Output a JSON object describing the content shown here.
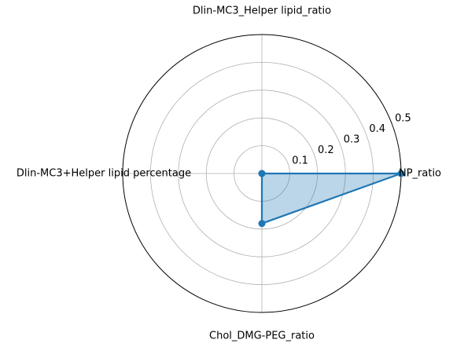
{
  "chart_data": {
    "type": "radar",
    "title": "",
    "axes": [
      "NP_ratio",
      "Dlin-MC3_Helper lipid_ratio",
      "Dlin-MC3+Helper lipid percentage",
      "Chol_DMG-PEG_ratio"
    ],
    "radial_ticks": [
      "0.1",
      "0.2",
      "0.3",
      "0.4",
      "0.5"
    ],
    "radial_range": [
      0,
      0.5
    ],
    "grid": true,
    "legend": "none",
    "series": [
      {
        "values": [
          0.5,
          0.0,
          0.0,
          0.18
        ]
      }
    ]
  },
  "colors": {
    "line": "#1f77b4",
    "fill": "rgba(31,119,180,0.30)",
    "grid": "#b0b0b0",
    "frame": "#000000"
  }
}
